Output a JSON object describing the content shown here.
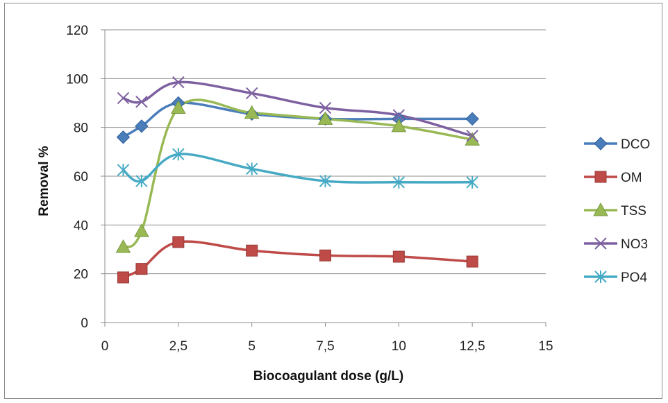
{
  "chart_data": {
    "type": "line",
    "xlabel": "Biocoagulant dose (g/L)",
    "ylabel": "Removal %",
    "xlim": [
      0,
      15
    ],
    "ylim": [
      0,
      120
    ],
    "x_ticks": [
      0,
      2.5,
      5,
      7.5,
      10,
      12.5,
      15
    ],
    "x_tick_labels": [
      "0",
      "2,5",
      "5",
      "7,5",
      "10",
      "12,5",
      "15"
    ],
    "y_ticks": [
      0,
      20,
      40,
      60,
      80,
      100,
      120
    ],
    "y_tick_labels": [
      "0",
      "20",
      "40",
      "60",
      "80",
      "100",
      "120"
    ],
    "grid": "horizontal",
    "legend_position": "right",
    "smooth": true,
    "series": [
      {
        "name": "DCO",
        "color": "#4a7ebb",
        "marker": "diamond",
        "points": [
          [
            0.625,
            76
          ],
          [
            1.25,
            80.5
          ],
          [
            2.5,
            90
          ],
          [
            5,
            85.5
          ],
          [
            7.5,
            83.5
          ],
          [
            10,
            83.5
          ],
          [
            12.5,
            83.5
          ]
        ]
      },
      {
        "name": "OM",
        "color": "#be4b48",
        "marker": "square",
        "points": [
          [
            0.625,
            18.5
          ],
          [
            1.25,
            22
          ],
          [
            2.5,
            33
          ],
          [
            5,
            29.5
          ],
          [
            7.5,
            27.5
          ],
          [
            10,
            27
          ],
          [
            12.5,
            25
          ]
        ]
      },
      {
        "name": "TSS",
        "color": "#98b954",
        "marker": "triangle",
        "points": [
          [
            0.625,
            31
          ],
          [
            1.25,
            37.5
          ],
          [
            2.5,
            88
          ],
          [
            5,
            86
          ],
          [
            7.5,
            83.5
          ],
          [
            10,
            80.5
          ],
          [
            12.5,
            75
          ]
        ]
      },
      {
        "name": "NO3",
        "color": "#7d60a0",
        "marker": "x",
        "points": [
          [
            0.625,
            92
          ],
          [
            1.25,
            90.5
          ],
          [
            2.5,
            98.5
          ],
          [
            5,
            94
          ],
          [
            7.5,
            88
          ],
          [
            10,
            85
          ],
          [
            12.5,
            76.5
          ]
        ]
      },
      {
        "name": "PO4",
        "color": "#46aac5",
        "marker": "star",
        "points": [
          [
            0.625,
            62.5
          ],
          [
            1.25,
            58
          ],
          [
            2.5,
            69
          ],
          [
            5,
            63
          ],
          [
            7.5,
            58
          ],
          [
            10,
            57.5
          ],
          [
            12.5,
            57.5
          ]
        ]
      }
    ]
  }
}
